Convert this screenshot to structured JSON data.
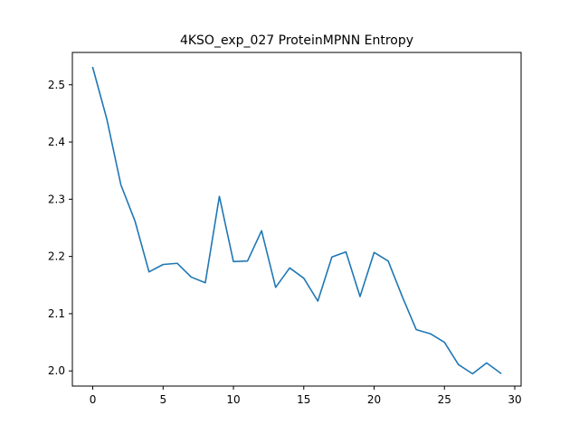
{
  "chart_data": {
    "type": "line",
    "title": "4KSO_exp_027 ProteinMPNN Entropy",
    "xlabel": "",
    "ylabel": "",
    "xlim": [
      -1.45,
      30.45
    ],
    "ylim": [
      1.9735,
      2.5565
    ],
    "xticks": [
      0,
      5,
      10,
      15,
      20,
      25,
      30
    ],
    "xtick_labels": [
      "0",
      "5",
      "10",
      "15",
      "20",
      "25",
      "30"
    ],
    "yticks": [
      2.0,
      2.1,
      2.2,
      2.3,
      2.4,
      2.5
    ],
    "ytick_labels": [
      "2.0",
      "2.1",
      "2.2",
      "2.3",
      "2.4",
      "2.5"
    ],
    "grid": false,
    "line_color": "#1f77b4",
    "series": [
      {
        "x": [
          0,
          1,
          2,
          3,
          4,
          5,
          6,
          7,
          8,
          9,
          10,
          11,
          12,
          13,
          14,
          15,
          16,
          17,
          18,
          19,
          20,
          21,
          22,
          23,
          24,
          25,
          26,
          27,
          28,
          29
        ],
        "values": [
          2.53,
          2.44,
          2.325,
          2.262,
          2.173,
          2.186,
          2.188,
          2.164,
          2.154,
          2.305,
          2.191,
          2.192,
          2.245,
          2.146,
          2.18,
          2.162,
          2.122,
          2.199,
          2.208,
          2.13,
          2.207,
          2.192,
          2.13,
          2.072,
          2.065,
          2.05,
          2.011,
          1.995,
          2.014,
          1.996
        ]
      }
    ]
  }
}
